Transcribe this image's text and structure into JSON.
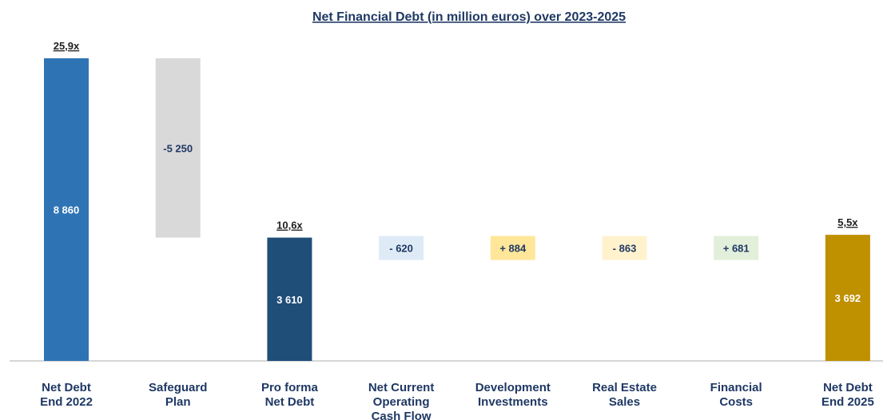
{
  "chart_data": {
    "type": "waterfall",
    "title": "Net Financial Debt (in million euros) over 2023-2025",
    "categories": [
      [
        "Net Debt",
        "End 2022"
      ],
      [
        "Safeguard",
        "Plan"
      ],
      [
        "Pro forma",
        "Net Debt"
      ],
      [
        "Net Current",
        "Operating",
        "Cash Flow"
      ],
      [
        "Development",
        "Investments"
      ],
      [
        "Real Estate",
        "Sales"
      ],
      [
        "Financial",
        "Costs"
      ],
      [
        "Net Debt",
        "End 2025"
      ]
    ],
    "values": [
      8860,
      -5250,
      3610,
      -620,
      884,
      -863,
      681,
      3692
    ],
    "value_labels": [
      "8 860",
      "-5 250",
      "3 610",
      "- 620",
      "+ 884",
      "- 863",
      "+ 681",
      "3 692"
    ],
    "bar_kind": [
      "total",
      "delta",
      "total",
      "delta",
      "delta",
      "delta",
      "delta",
      "total"
    ],
    "leverage_labels": [
      "25,9x",
      "",
      "10,6x",
      "",
      "",
      "",
      "",
      "5,5x"
    ],
    "colors": [
      "#2e74b5",
      "#d9d9d9",
      "#1f4e79",
      "#deebf7",
      "#ffe699",
      "#fff2cc",
      "#e2efda",
      "#bf9000"
    ],
    "label_colors": [
      "#ffffff",
      "#1f3864",
      "#ffffff",
      "#1f3864",
      "#1f3864",
      "#1f3864",
      "#1f3864",
      "#ffffff"
    ],
    "ylim": [
      0,
      9000
    ]
  }
}
